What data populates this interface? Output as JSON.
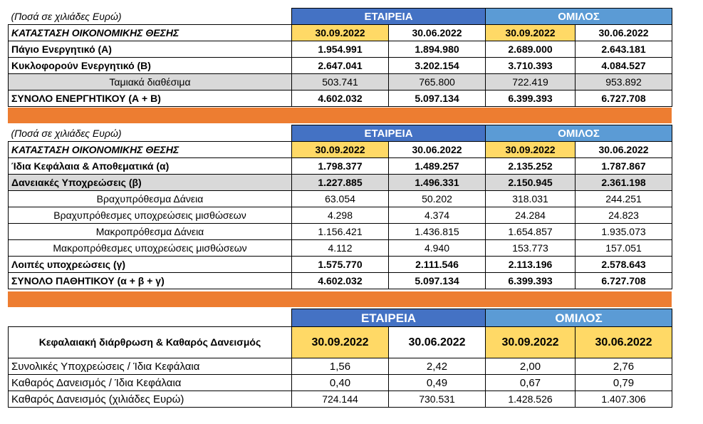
{
  "unit_note": "(Ποσά σε χιλιάδες Ευρώ)",
  "groups": {
    "company": "ΕΤΑΙΡΕΙΑ",
    "group": "ΟΜΙΛΟΣ"
  },
  "dates": [
    "30.09.2022",
    "30.06.2022",
    "30.09.2022",
    "30.06.2022"
  ],
  "section1": {
    "title": "ΚΑΤΑΣΤΑΣΗ ΟΙΚΟΝΟΜΙΚΗΣ ΘΕΣΗΣ",
    "rows": [
      {
        "label": "Πάγιο Ενεργητικό  (Α)",
        "values": [
          "1.954.991",
          "1.894.980",
          "2.689.000",
          "2.643.181"
        ]
      },
      {
        "label": "Κυκλοφορούν Ενεργητικό (Β)",
        "values": [
          "2.647.041",
          "3.202.154",
          "3.710.393",
          "4.084.527"
        ]
      },
      {
        "label": "Ταμιακά διαθέσιμα",
        "values": [
          "503.741",
          "765.800",
          "722.419",
          "953.892"
        ]
      },
      {
        "label": "ΣΥΝΟΛΟ ΕΝΕΡΓΗΤΙΚΟΥ (Α + Β)",
        "values": [
          "4.602.032",
          "5.097.134",
          "6.399.393",
          "6.727.708"
        ]
      }
    ]
  },
  "section2": {
    "title": "ΚΑΤΑΣΤΑΣΗ ΟΙΚΟΝΟΜΙΚΗΣ ΘΕΣΗΣ",
    "rows": [
      {
        "label": "Ίδια Κεφάλαια & Αποθεματικά (α)",
        "values": [
          "1.798.377",
          "1.489.257",
          "2.135.252",
          "1.787.867"
        ]
      },
      {
        "label": "Δανειακές Υποχρεώσεις (β)",
        "values": [
          "1.227.885",
          "1.496.331",
          "2.150.945",
          "2.361.198"
        ]
      },
      {
        "label": "Βραχυπρόθεσμα Δάνεια",
        "values": [
          "63.054",
          "50.202",
          "318.031",
          "244.251"
        ]
      },
      {
        "label": "Βραχυπρόθεσμες υποχρεώσεις μισθώσεων",
        "values": [
          "4.298",
          "4.374",
          "24.284",
          "24.823"
        ]
      },
      {
        "label": "Μακροπρόθεσμα Δάνεια",
        "values": [
          "1.156.421",
          "1.436.815",
          "1.654.857",
          "1.935.073"
        ]
      },
      {
        "label": "Μακροπρόθεσμες υποχρεώσεις μισθώσεων",
        "values": [
          "4.112",
          "4.940",
          "153.773",
          "157.051"
        ]
      },
      {
        "label": "Λοιπές υποχρεώσεις (γ)",
        "values": [
          "1.575.770",
          "2.111.546",
          "2.113.196",
          "2.578.643"
        ]
      },
      {
        "label": "ΣΥΝΟΛΟ ΠΑΘΗΤΙΚΟΥ (α + β + γ)",
        "values": [
          "4.602.032",
          "5.097.134",
          "6.399.393",
          "6.727.708"
        ]
      }
    ]
  },
  "section3": {
    "title": "Κεφαλαιακή διάρθρωση & Καθαρός Δανεισμός",
    "rows": [
      {
        "label": "Συνολικές Υποχρεώσεις / Ίδια Κεφάλαια",
        "values": [
          "1,56",
          "2,42",
          "2,00",
          "2,76"
        ]
      },
      {
        "label": "Καθαρός Δανεισμός / Ίδια Κεφάλαια",
        "values": [
          "0,40",
          "0,49",
          "0,67",
          "0,79"
        ]
      },
      {
        "label": "Καθαρός Δανεισμός (χιλιάδες Ευρώ)",
        "values": [
          "724.144",
          "730.531",
          "1.428.526",
          "1.407.306"
        ]
      }
    ]
  },
  "colors": {
    "company_header": "#4472c4",
    "group_header": "#5b9bd5",
    "date_highlight": "#ffd966",
    "separator": "#ed7d31",
    "gray_row": "#d9d9d9"
  }
}
